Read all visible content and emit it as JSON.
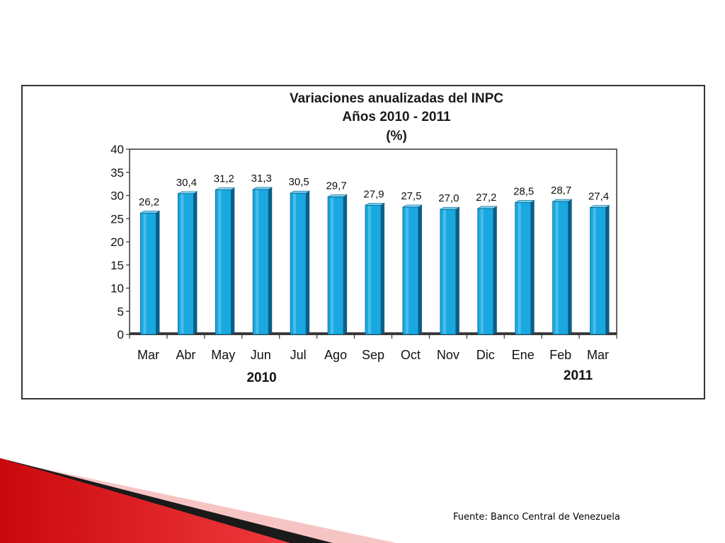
{
  "chart_data": {
    "type": "bar",
    "title": "Variaciones anualizadas del INPC",
    "subtitle": "Años 2010 - 2011",
    "unit": "(%)",
    "categories": [
      "Mar",
      "Abr",
      "May",
      "Jun",
      "Jul",
      "Ago",
      "Sep",
      "Oct",
      "Nov",
      "Dic",
      "Ene",
      "Feb",
      "Mar"
    ],
    "values": [
      26.2,
      30.4,
      31.2,
      31.3,
      30.5,
      29.7,
      27.9,
      27.5,
      27.0,
      27.2,
      28.5,
      28.7,
      27.4
    ],
    "data_labels": [
      "26,2",
      "30,4",
      "31,2",
      "31,3",
      "30,5",
      "29,7",
      "27,9",
      "27,5",
      "27,0",
      "27,2",
      "28,5",
      "28,7",
      "27,4"
    ],
    "year_groups": [
      {
        "label": "2010",
        "from": 0,
        "to": 9
      },
      {
        "label": "2011",
        "from": 10,
        "to": 12
      }
    ],
    "ylim": [
      0,
      40
    ],
    "yticks": [
      0,
      5,
      10,
      15,
      20,
      25,
      30,
      35,
      40
    ],
    "grid": false,
    "legend": "none",
    "bar_color": "#1aa8e0",
    "bar_shadow_color": "#0a5f86"
  },
  "source": {
    "text": "Fuente: Banco Central de Venezuela"
  },
  "decoration": {
    "accent_color": "#e8181c",
    "dark_color": "#1a1a1a",
    "light_color": "#f5b8b8"
  }
}
